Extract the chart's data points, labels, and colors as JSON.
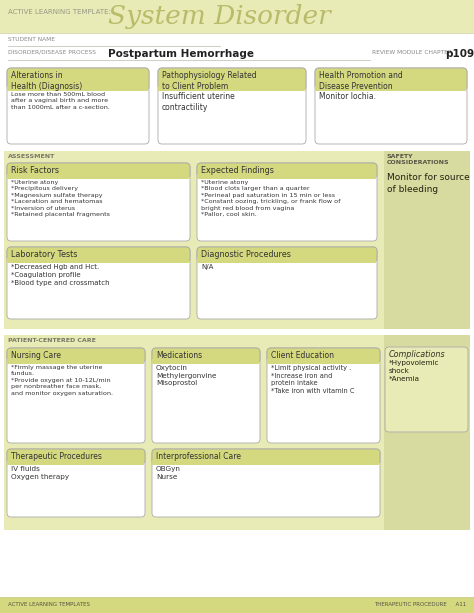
{
  "title_prefix": "ACTIVE LEARNING TEMPLATE:",
  "title_main": "System Disorder",
  "student_name_label": "STUDENT NAME",
  "disorder_label": "DISORDER/DISEASE PROCESS",
  "disorder_value": "Postpartum Hemorrhage",
  "review_label": "REVIEW MODULE CHAPTER",
  "review_value": "p109",
  "header_bg": "#e8ebb5",
  "box_header_bg": "#d4d87e",
  "box_bg": "#ffffff",
  "section_bg": "#e8ebb5",
  "side_bg": "#d4d87e",
  "footer_bg": "#d4d87e",
  "boxes": {
    "alterations": {
      "title": "Alterations in\nHealth (Diagnosis)",
      "content": "Lose more than 500mL blood\nafter a vaginal birth and more\nthan 1000mL after a c-section."
    },
    "pathophysiology": {
      "title": "Pathophysiology Related\nto Client Problem",
      "content": "Insufficient uterine\ncontractility"
    },
    "health": {
      "title": "Health Promotion and\nDisease Prevention",
      "content": "Monitor lochia."
    },
    "risk_factors": {
      "title": "Risk Factors",
      "content": "*Uterine atony\n*Precipitous delivery\n*Magnesium sulfate therapy\n*Laceration and hematomas\n*Inversion of uterus\n*Retained placental fragments"
    },
    "expected_findings": {
      "title": "Expected Findings",
      "content": "*Uterine atony\n*Blood clots larger than a quarter\n*Perineal pad saturation in 15 min or less\n*Constant oozing, trickling, or frank flow of\nbright red blood from vagina\n*Pallor, cool skin."
    },
    "safety_title": "SAFETY\nCONSIDERATIONS",
    "safety_content": "Monitor for source\nof bleeding",
    "lab_tests": {
      "title": "Laboratory Tests",
      "content": "*Decreased Hgb and Hct.\n*Coagulation profile\n*Blood type and crossmatch"
    },
    "diagnostic": {
      "title": "Diagnostic Procedures",
      "content": "N/A"
    },
    "nursing": {
      "title": "Nursing Care",
      "content": "*Firmly massage the uterine\nfundus.\n*Provide oxygen at 10-12L/min\nper nonbreather face mask,\nand monitor oxygen saturation."
    },
    "medications": {
      "title": "Medications",
      "content": "Oxytocin\nMethylergonvine\nMisoprostol"
    },
    "client_ed": {
      "title": "Client Education",
      "content": "*Limit physical activity .\n*Increase iron and\nprotein intake\n*Take iron with vitamin C"
    },
    "complications_title": "Complications",
    "complications_content": "*Hypovolemic\nshock\n*Anemia",
    "therapeutic": {
      "title": "Therapeutic Procedures",
      "content": "IV fluids\nOxygen therapy"
    },
    "interprofessional": {
      "title": "Interprofessional Care",
      "content": "OBGyn\nNurse"
    }
  },
  "footer_left": "ACTIVE LEARNING TEMPLATES",
  "footer_right": "THERAPEUTIC PROCEDURE     A11"
}
